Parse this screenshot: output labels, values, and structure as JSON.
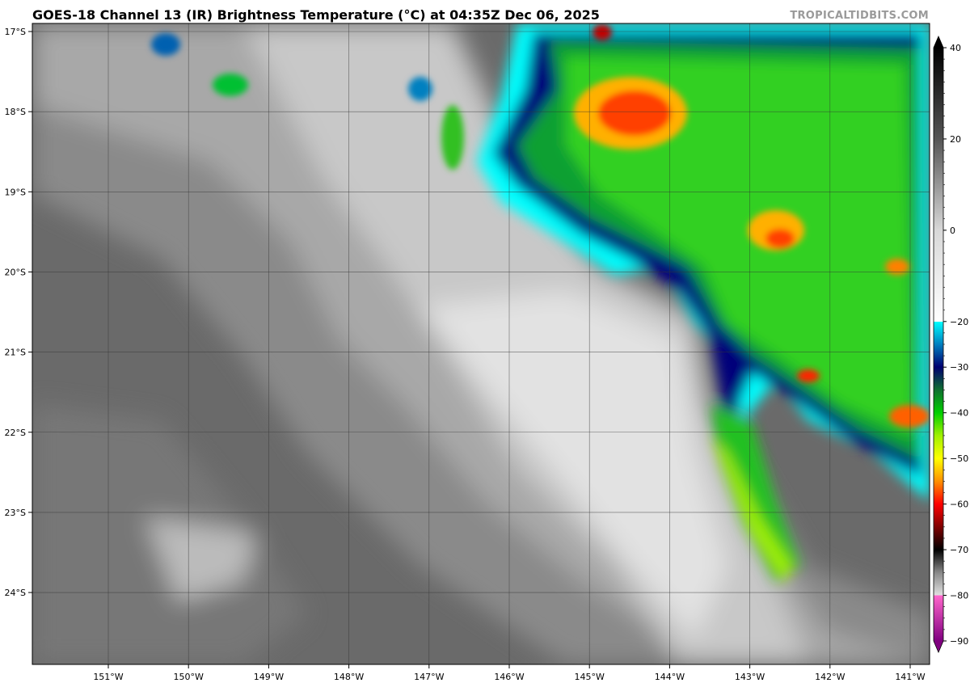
{
  "title": "GOES-18 Channel 13 (IR) Brightness Temperature (°C) at 04:35Z Dec 06, 2025",
  "watermark": "TROPICALTIDBITS.COM",
  "map": {
    "lon_ticks": [
      {
        "value": -151,
        "label": "151°W"
      },
      {
        "value": -150,
        "label": "150°W"
      },
      {
        "value": -149,
        "label": "149°W"
      },
      {
        "value": -148,
        "label": "148°W"
      },
      {
        "value": -147,
        "label": "147°W"
      },
      {
        "value": -146,
        "label": "146°W"
      },
      {
        "value": -145,
        "label": "145°W"
      },
      {
        "value": -144,
        "label": "144°W"
      },
      {
        "value": -143,
        "label": "143°W"
      },
      {
        "value": -142,
        "label": "142°W"
      },
      {
        "value": -141,
        "label": "141°W"
      }
    ],
    "lat_ticks": [
      {
        "value": -17,
        "label": "17°S"
      },
      {
        "value": -18,
        "label": "18°S"
      },
      {
        "value": -19,
        "label": "19°S"
      },
      {
        "value": -20,
        "label": "20°S"
      },
      {
        "value": -21,
        "label": "21°S"
      },
      {
        "value": -22,
        "label": "22°S"
      },
      {
        "value": -23,
        "label": "23°S"
      },
      {
        "value": -24,
        "label": "24°S"
      }
    ],
    "extent": {
      "lon": [
        -151.95,
        -140.77
      ],
      "lat": [
        -16.9,
        -24.9
      ]
    }
  },
  "colorbar": {
    "ticks": [
      40,
      20,
      0,
      -20,
      -30,
      -40,
      -50,
      -60,
      -70,
      -80,
      -90
    ],
    "range": [
      -90,
      40
    ],
    "extend": "both",
    "stops": [
      {
        "t": 40,
        "color": "#000000"
      },
      {
        "t": 20,
        "color": "#555555"
      },
      {
        "t": 0,
        "color": "#d8d8d8"
      },
      {
        "t": -20,
        "color": "#ffffff"
      },
      {
        "t": -20,
        "color": "#00ffff"
      },
      {
        "t": -25,
        "color": "#0080c0"
      },
      {
        "t": -30,
        "color": "#000070"
      },
      {
        "t": -35,
        "color": "#107030"
      },
      {
        "t": -40,
        "color": "#00d000"
      },
      {
        "t": -45,
        "color": "#a0f000"
      },
      {
        "t": -50,
        "color": "#ffff00"
      },
      {
        "t": -55,
        "color": "#ff9000"
      },
      {
        "t": -60,
        "color": "#ff0000"
      },
      {
        "t": -65,
        "color": "#800000"
      },
      {
        "t": -70,
        "color": "#000000"
      },
      {
        "t": -75,
        "color": "#888888"
      },
      {
        "t": -80,
        "color": "#e0e0e0"
      },
      {
        "t": -80,
        "color": "#ff66cc"
      },
      {
        "t": -90,
        "color": "#800080"
      }
    ]
  }
}
